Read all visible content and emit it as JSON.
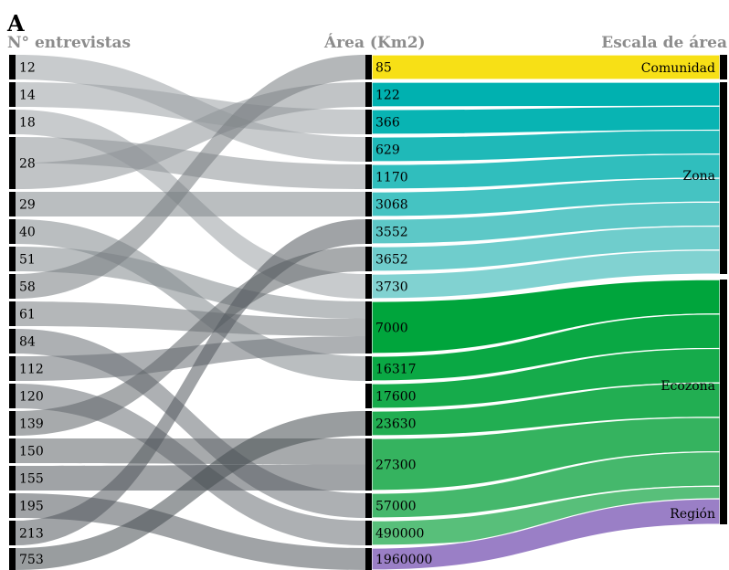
{
  "panel_label": "A",
  "headers": {
    "left": "N° entrevistas",
    "middle": "Área (Km2)",
    "right": "Escala de área"
  },
  "colors": {
    "header_text": "#8c8c8c",
    "node_bar": "#000000",
    "comunidad": "#f7e016",
    "zona": [
      "#00b1b0",
      "#08b4b3",
      "#1fb9b8",
      "#30bebd",
      "#45c3c2",
      "#5dc8c7",
      "#6fcdcc",
      "#81d2d1"
    ],
    "ecozona": [
      "#00a53c",
      "#0aa844",
      "#16ab4b",
      "#22ae52",
      "#35b35f",
      "#45b86c",
      "#58bf7a",
      "#6cc589"
    ],
    "region": "#9a7fc6"
  },
  "left_nodes": [
    "12",
    "14",
    "18",
    "28",
    "29",
    "40",
    "51",
    "58",
    "61",
    "84",
    "112",
    "120",
    "139",
    "150",
    "155",
    "195",
    "213",
    "753"
  ],
  "middle_nodes": [
    "85",
    "122",
    "366",
    "629",
    "1170",
    "3068",
    "3552",
    "3652",
    "3730",
    "7000",
    "16317",
    "17600",
    "23630",
    "27300",
    "57000",
    "490000",
    "1960000"
  ],
  "right_nodes": [
    "Comunidad",
    "Zona",
    "Ecozona",
    "Región"
  ],
  "links_left_to_middle": [
    {
      "source": "12",
      "target": "629"
    },
    {
      "source": "14",
      "target": "366"
    },
    {
      "source": "18",
      "target": "3730"
    },
    {
      "source": "28",
      "target": "1170"
    },
    {
      "source": "28",
      "target": "122"
    },
    {
      "source": "29",
      "target": "3068"
    },
    {
      "source": "40",
      "target": "16317"
    },
    {
      "source": "51",
      "target": "7000"
    },
    {
      "source": "58",
      "target": "85"
    },
    {
      "source": "61",
      "target": "7000"
    },
    {
      "source": "84",
      "target": "57000"
    },
    {
      "source": "112",
      "target": "7000"
    },
    {
      "source": "120",
      "target": "490000"
    },
    {
      "source": "139",
      "target": "3652"
    },
    {
      "source": "150",
      "target": "27300"
    },
    {
      "source": "155",
      "target": "27300"
    },
    {
      "source": "195",
      "target": "1960000"
    },
    {
      "source": "213",
      "target": "3552"
    },
    {
      "source": "753",
      "target": "23630"
    }
  ],
  "links_middle_to_right": [
    {
      "source": "85",
      "target": "Comunidad"
    },
    {
      "source": "122",
      "target": "Zona"
    },
    {
      "source": "366",
      "target": "Zona"
    },
    {
      "source": "629",
      "target": "Zona"
    },
    {
      "source": "1170",
      "target": "Zona"
    },
    {
      "source": "3068",
      "target": "Zona"
    },
    {
      "source": "3552",
      "target": "Zona"
    },
    {
      "source": "3652",
      "target": "Zona"
    },
    {
      "source": "3730",
      "target": "Zona"
    },
    {
      "source": "7000",
      "target": "Ecozona"
    },
    {
      "source": "16317",
      "target": "Ecozona"
    },
    {
      "source": "17600",
      "target": "Ecozona"
    },
    {
      "source": "23630",
      "target": "Ecozona"
    },
    {
      "source": "27300",
      "target": "Ecozona"
    },
    {
      "source": "57000",
      "target": "Ecozona"
    },
    {
      "source": "490000",
      "target": "Ecozona"
    },
    {
      "source": "1960000",
      "target": "Región"
    }
  ]
}
